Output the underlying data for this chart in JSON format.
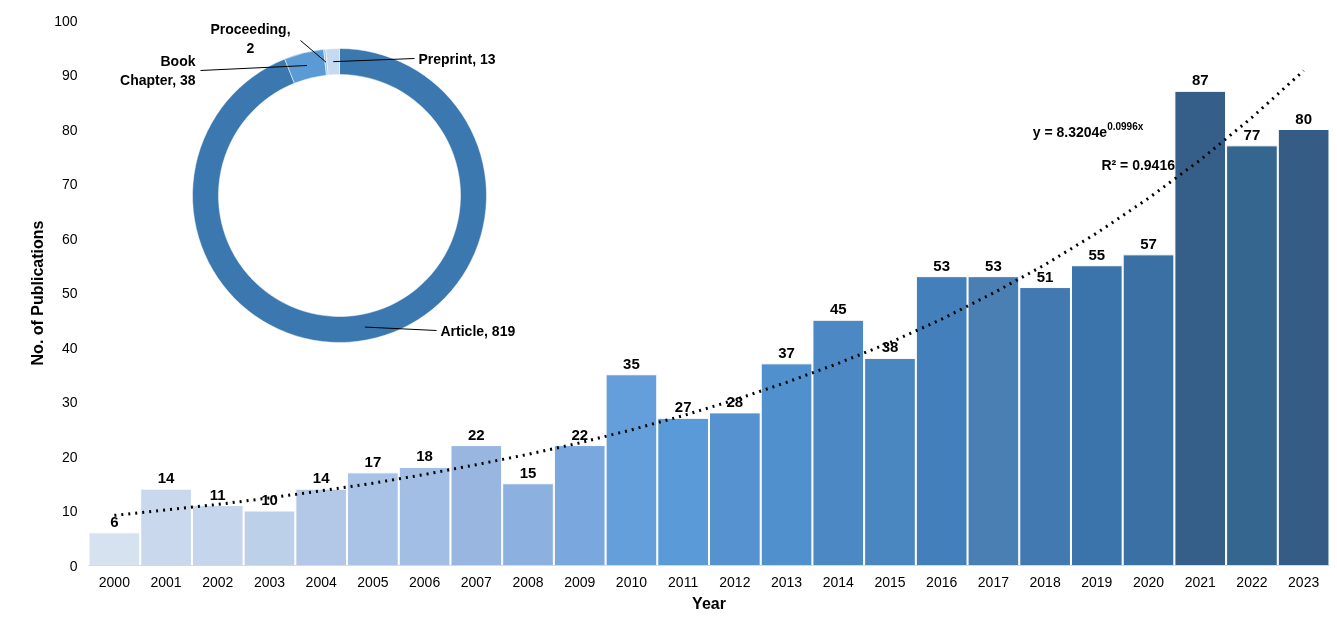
{
  "chart_data": [
    {
      "type": "bar",
      "xlabel": "Year",
      "ylabel": "No. of Publications",
      "ylim": [
        0,
        100
      ],
      "yticks": [
        0,
        10,
        20,
        30,
        40,
        50,
        60,
        70,
        80,
        90,
        100
      ],
      "categories": [
        "2000",
        "2001",
        "2002",
        "2003",
        "2004",
        "2005",
        "2006",
        "2007",
        "2008",
        "2009",
        "2010",
        "2011",
        "2012",
        "2013",
        "2014",
        "2015",
        "2016",
        "2017",
        "2018",
        "2019",
        "2020",
        "2021",
        "2022",
        "2023"
      ],
      "series": [
        {
          "type": "bar",
          "values": [
            6,
            14,
            11,
            10,
            14,
            17,
            18,
            22,
            15,
            22,
            35,
            27,
            28,
            37,
            45,
            38,
            53,
            53,
            51,
            55,
            57,
            87,
            77,
            80
          ],
          "value_labels": [
            "6",
            "14",
            "11",
            "10",
            "14",
            "17",
            "18",
            "22",
            "15",
            "22",
            "35",
            "27",
            "28",
            "37",
            "45",
            "38",
            "53",
            "53",
            "51",
            "55",
            "57",
            "87",
            "77",
            "80"
          ],
          "colors": [
            "#d6e2f0",
            "#c9d8ec",
            "#c5d6ec",
            "#bdd0ea",
            "#b3c8e6",
            "#a9c3e6",
            "#a3bee4",
            "#99b6e0",
            "#8cb0df",
            "#7aa7dd",
            "#649fdb",
            "#5a9ad8",
            "#5592cf",
            "#5090cc",
            "#4c88c4",
            "#4a86c0",
            "#4380bb",
            "#4a7fb4",
            "#4279b0",
            "#3a74aa",
            "#3a70a4",
            "#355f88",
            "#356690",
            "#355c84"
          ]
        },
        {
          "type": "line",
          "color": "#000000",
          "line_style": "dotted",
          "values": [
            9.2,
            10.2,
            11.2,
            12.4,
            13.7,
            15.1,
            16.7,
            18.5,
            20.4,
            22.5,
            24.9,
            27.5,
            30.4,
            33.6,
            37.1,
            40.9,
            45.2,
            50.0,
            55.2,
            61.0,
            67.4,
            74.4,
            82.2,
            90.8
          ]
        }
      ],
      "annotations": [
        "y = 8.3204e$^{0.0996x}$",
        "R² = 0.9416"
      ]
    },
    {
      "type": "donut",
      "categories": [
        "Article, 819",
        "Book Chapter, 38",
        "Proceeding, 2",
        "Preprint, 13"
      ],
      "values": [
        819,
        38,
        2,
        13
      ],
      "colors": [
        "#3b78b0",
        "#5b9bd5",
        "#9dc3e6",
        "#c5d9f0"
      ]
    }
  ]
}
